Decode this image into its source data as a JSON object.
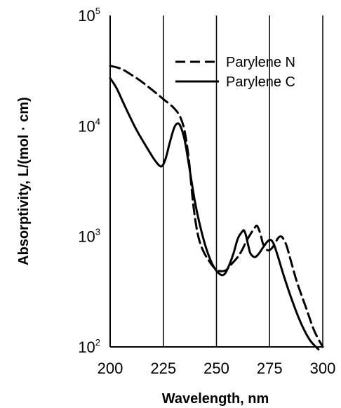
{
  "chart_data": {
    "type": "line",
    "title": "",
    "xlabel": "Wavelength, nm",
    "ylabel": "Absorptivity, L/(mol · cm)",
    "xlim": [
      200,
      300
    ],
    "ylim": [
      100,
      100000
    ],
    "yscale": "log",
    "grid": "vertical",
    "legend_position": "top-right",
    "x_ticks": [
      200,
      225,
      250,
      275,
      300
    ],
    "x_tick_labels": [
      "200",
      "225",
      "250",
      "275",
      "300"
    ],
    "y_ticks": [
      {
        "value": 100,
        "base": "10",
        "exp": "2"
      },
      {
        "value": 1000,
        "base": "10",
        "exp": "3"
      },
      {
        "value": 10000,
        "base": "10",
        "exp": "4"
      },
      {
        "value": 100000,
        "base": "10",
        "exp": "5"
      }
    ],
    "series": [
      {
        "name": "Parylene N",
        "style": "dashed",
        "points": [
          [
            200,
            35000
          ],
          [
            205,
            33000
          ],
          [
            210,
            29000
          ],
          [
            215,
            25000
          ],
          [
            220,
            21000
          ],
          [
            225,
            17500
          ],
          [
            230,
            14500
          ],
          [
            233,
            12000
          ],
          [
            235,
            9000
          ],
          [
            237,
            5000
          ],
          [
            239,
            2000
          ],
          [
            241,
            1100
          ],
          [
            243,
            800
          ],
          [
            246,
            620
          ],
          [
            250,
            500
          ],
          [
            254,
            490
          ],
          [
            257,
            560
          ],
          [
            260,
            650
          ],
          [
            262,
            750
          ],
          [
            264,
            900
          ],
          [
            266,
            1050
          ],
          [
            268,
            1200
          ],
          [
            269,
            1250
          ],
          [
            270,
            1150
          ],
          [
            271,
            1000
          ],
          [
            272,
            850
          ],
          [
            274,
            750
          ],
          [
            276,
            780
          ],
          [
            278,
            900
          ],
          [
            279.5,
            990
          ],
          [
            281,
            980
          ],
          [
            283,
            820
          ],
          [
            285,
            600
          ],
          [
            288,
            380
          ],
          [
            292,
            230
          ],
          [
            296,
            140
          ],
          [
            300,
            100
          ]
        ]
      },
      {
        "name": "Parylene C",
        "style": "solid",
        "points": [
          [
            200,
            27000
          ],
          [
            203,
            22000
          ],
          [
            207,
            15000
          ],
          [
            212,
            9500
          ],
          [
            217,
            6500
          ],
          [
            221,
            4900
          ],
          [
            224,
            4300
          ],
          [
            226,
            5000
          ],
          [
            228,
            7000
          ],
          [
            230,
            9500
          ],
          [
            231.5,
            10500
          ],
          [
            233,
            10000
          ],
          [
            235,
            7500
          ],
          [
            237,
            4500
          ],
          [
            240,
            2000
          ],
          [
            243,
            1100
          ],
          [
            246,
            700
          ],
          [
            249,
            520
          ],
          [
            252,
            450
          ],
          [
            254,
            460
          ],
          [
            256,
            550
          ],
          [
            258,
            700
          ],
          [
            260,
            950
          ],
          [
            262,
            1100
          ],
          [
            263,
            1130
          ],
          [
            264,
            1000
          ],
          [
            265,
            820
          ],
          [
            266,
            700
          ],
          [
            268,
            650
          ],
          [
            270,
            700
          ],
          [
            272,
            800
          ],
          [
            274,
            900
          ],
          [
            275.5,
            930
          ],
          [
            277,
            850
          ],
          [
            279,
            650
          ],
          [
            282,
            420
          ],
          [
            286,
            250
          ],
          [
            290,
            160
          ],
          [
            294,
            115
          ],
          [
            298,
            95
          ]
        ]
      }
    ]
  }
}
